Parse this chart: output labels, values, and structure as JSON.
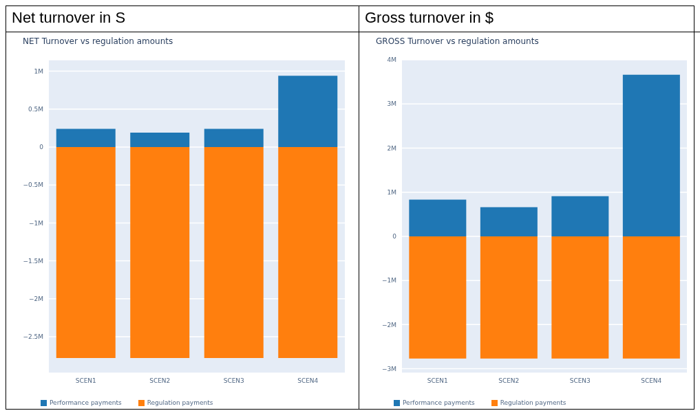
{
  "chart_data": [
    {
      "type": "bar",
      "title": "Net turnover in S",
      "subtitle": "NET Turnover vs regulation amounts",
      "categories": [
        "SCEN1",
        "SCEN2",
        "SCEN3",
        "SCEN4"
      ],
      "stacked": true,
      "series": [
        {
          "name": "Performance payments",
          "color": "#1f77b4",
          "values": [
            240000,
            190000,
            240000,
            940000
          ]
        },
        {
          "name": "Regulation payments",
          "color": "#ff7f0e",
          "values": [
            -2780000,
            -2780000,
            -2780000,
            -2780000
          ]
        }
      ],
      "ylim": [
        -2980000,
        1150000
      ],
      "yticks": [
        {
          "value": -2500000,
          "label": "−2.5M"
        },
        {
          "value": -2000000,
          "label": "−2M"
        },
        {
          "value": -1500000,
          "label": "−1.5M"
        },
        {
          "value": -1000000,
          "label": "−1M"
        },
        {
          "value": -500000,
          "label": "−0.5M"
        },
        {
          "value": 0,
          "label": "0"
        },
        {
          "value": 500000,
          "label": "0.5M"
        },
        {
          "value": 1000000,
          "label": "1M"
        }
      ],
      "grid": "y",
      "legend": "bottom left"
    },
    {
      "type": "bar",
      "title": "Gross turnover in $",
      "subtitle": "GROSS Turnover vs regulation amounts",
      "categories": [
        "SCEN1",
        "SCEN2",
        "SCEN3",
        "SCEN4"
      ],
      "stacked": true,
      "series": [
        {
          "name": "Performance payments",
          "color": "#1f77b4",
          "values": [
            830000,
            660000,
            910000,
            3660000
          ]
        },
        {
          "name": "Regulation payments",
          "color": "#ff7f0e",
          "values": [
            -2770000,
            -2770000,
            -2770000,
            -2770000
          ]
        }
      ],
      "ylim": [
        -3100000,
        4000000
      ],
      "yticks": [
        {
          "value": -3000000,
          "label": "−3M"
        },
        {
          "value": -2000000,
          "label": "−2M"
        },
        {
          "value": -1000000,
          "label": "−1M"
        },
        {
          "value": 0,
          "label": "0"
        },
        {
          "value": 1000000,
          "label": "1M"
        },
        {
          "value": 2000000,
          "label": "2M"
        },
        {
          "value": 3000000,
          "label": "3M"
        },
        {
          "value": 4000000,
          "label": "4M"
        }
      ],
      "grid": "y",
      "legend": "bottom left"
    }
  ]
}
